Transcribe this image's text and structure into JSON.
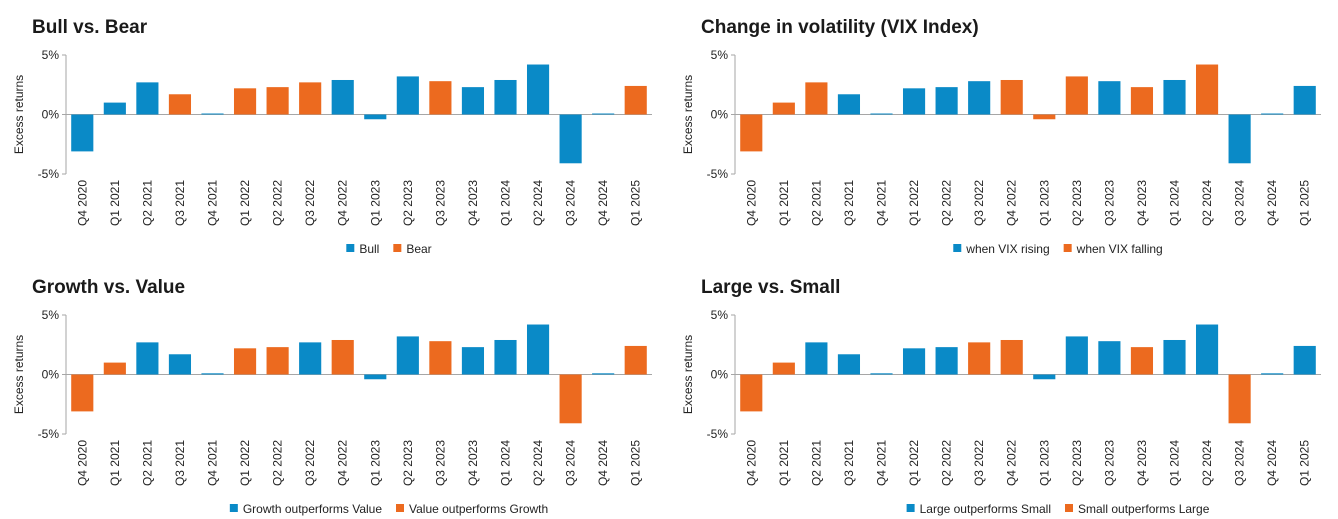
{
  "colors": {
    "blue": "#0a8ac7",
    "orange": "#ec6a1f",
    "axis": "#a6a6a6"
  },
  "chart_data": [
    {
      "type": "bar",
      "title": "Bull vs. Bear",
      "ylabel": "Excess returns",
      "ylim": [
        -5,
        5
      ],
      "yticks": [
        -5,
        0,
        5
      ],
      "ytick_labels": [
        "-5%",
        "0%",
        "5%"
      ],
      "grid": false,
      "legend_position": "bottom",
      "categories": [
        "Q4 2020",
        "Q1 2021",
        "Q2 2021",
        "Q3 2021",
        "Q4 2021",
        "Q1 2022",
        "Q2 2022",
        "Q3 2022",
        "Q4 2022",
        "Q1 2023",
        "Q2 2023",
        "Q3 2023",
        "Q4 2023",
        "Q1 2024",
        "Q2 2024",
        "Q3 2024",
        "Q4 2024",
        "Q1 2025"
      ],
      "series": [
        {
          "name": "Bull",
          "color": "#0a8ac7",
          "values": [
            -3.1,
            1.0,
            2.7,
            null,
            0.0,
            null,
            null,
            null,
            2.9,
            -0.4,
            3.2,
            null,
            2.3,
            2.9,
            4.2,
            -4.1,
            0.0,
            null
          ]
        },
        {
          "name": "Bear",
          "color": "#ec6a1f",
          "values": [
            null,
            null,
            null,
            1.7,
            null,
            2.2,
            2.3,
            2.7,
            null,
            null,
            null,
            2.8,
            null,
            null,
            null,
            null,
            null,
            2.4
          ]
        }
      ]
    },
    {
      "type": "bar",
      "title": "Change in volatility (VIX Index)",
      "ylabel": "Excess returns",
      "ylim": [
        -5,
        5
      ],
      "yticks": [
        -5,
        0,
        5
      ],
      "ytick_labels": [
        "-5%",
        "0%",
        "5%"
      ],
      "grid": false,
      "legend_position": "bottom",
      "categories": [
        "Q4 2020",
        "Q1 2021",
        "Q2 2021",
        "Q3 2021",
        "Q4 2021",
        "Q1 2022",
        "Q2 2022",
        "Q3 2022",
        "Q4 2022",
        "Q1 2023",
        "Q2 2023",
        "Q3 2023",
        "Q4 2023",
        "Q1 2024",
        "Q2 2024",
        "Q3 2024",
        "Q4 2024",
        "Q1 2025"
      ],
      "series": [
        {
          "name": "when VIX rising",
          "color": "#0a8ac7",
          "values": [
            null,
            null,
            null,
            1.7,
            0.0,
            2.2,
            2.3,
            2.8,
            null,
            null,
            null,
            2.8,
            null,
            2.9,
            null,
            -4.1,
            0.0,
            2.4
          ]
        },
        {
          "name": "when VIX falling",
          "color": "#ec6a1f",
          "values": [
            -3.1,
            1.0,
            2.7,
            null,
            null,
            null,
            null,
            null,
            2.9,
            -0.4,
            3.2,
            null,
            2.3,
            null,
            4.2,
            null,
            null,
            null
          ]
        }
      ]
    },
    {
      "type": "bar",
      "title": "Growth vs. Value",
      "ylabel": "Excess returns",
      "ylim": [
        -5,
        5
      ],
      "yticks": [
        -5,
        0,
        5
      ],
      "ytick_labels": [
        "-5%",
        "0%",
        "5%"
      ],
      "grid": false,
      "legend_position": "bottom",
      "categories": [
        "Q4 2020",
        "Q1 2021",
        "Q2 2021",
        "Q3 2021",
        "Q4 2021",
        "Q1 2022",
        "Q2 2022",
        "Q3 2022",
        "Q4 2022",
        "Q1 2023",
        "Q2 2023",
        "Q3 2023",
        "Q4 2023",
        "Q1 2024",
        "Q2 2024",
        "Q3 2024",
        "Q4 2024",
        "Q1 2025"
      ],
      "series": [
        {
          "name": "Growth outperforms Value",
          "color": "#0a8ac7",
          "values": [
            null,
            null,
            2.7,
            1.7,
            0.1,
            null,
            null,
            2.7,
            null,
            -0.4,
            3.2,
            null,
            2.3,
            2.9,
            4.2,
            null,
            0.1,
            null
          ]
        },
        {
          "name": "Value outperforms Growth",
          "color": "#ec6a1f",
          "values": [
            -3.1,
            1.0,
            null,
            null,
            null,
            2.2,
            2.3,
            null,
            2.9,
            null,
            null,
            2.8,
            null,
            null,
            null,
            -4.1,
            null,
            2.4
          ]
        }
      ]
    },
    {
      "type": "bar",
      "title": "Large vs. Small",
      "ylabel": "Excess returns",
      "ylim": [
        -5,
        5
      ],
      "yticks": [
        -5,
        0,
        5
      ],
      "ytick_labels": [
        "-5%",
        "0%",
        "5%"
      ],
      "grid": false,
      "legend_position": "bottom",
      "categories": [
        "Q4 2020",
        "Q1 2021",
        "Q2 2021",
        "Q3 2021",
        "Q4 2021",
        "Q1 2022",
        "Q2 2022",
        "Q3 2022",
        "Q4 2022",
        "Q1 2023",
        "Q2 2023",
        "Q3 2023",
        "Q4 2023",
        "Q1 2024",
        "Q2 2024",
        "Q3 2024",
        "Q4 2024",
        "Q1 2025"
      ],
      "series": [
        {
          "name": "Large outperforms Small",
          "color": "#0a8ac7",
          "values": [
            null,
            null,
            2.7,
            1.7,
            0.1,
            2.2,
            2.3,
            null,
            null,
            -0.4,
            3.2,
            2.8,
            null,
            2.9,
            4.2,
            null,
            0.1,
            2.4
          ]
        },
        {
          "name": "Small outperforms Large",
          "color": "#ec6a1f",
          "values": [
            -3.1,
            1.0,
            null,
            null,
            null,
            null,
            null,
            2.7,
            2.9,
            null,
            null,
            null,
            2.3,
            null,
            null,
            -4.1,
            null,
            null
          ]
        }
      ]
    }
  ]
}
